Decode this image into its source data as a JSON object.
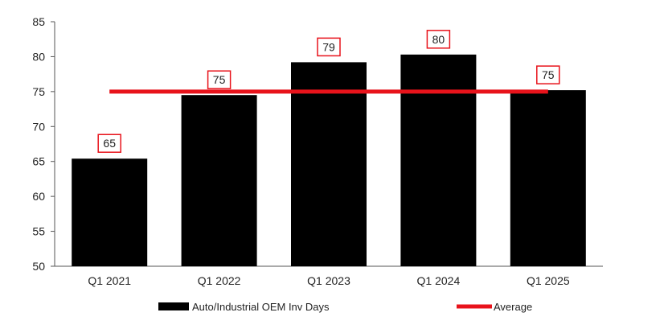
{
  "chart_data": {
    "type": "bar",
    "categories": [
      "Q1 2021",
      "Q1 2022",
      "Q1 2023",
      "Q1 2024",
      "Q1 2025"
    ],
    "series": [
      {
        "name": "Auto/Industrial OEM Inv Days",
        "values": [
          65.4,
          74.5,
          79.2,
          80.3,
          75.2
        ],
        "labels": [
          "65",
          "75",
          "79",
          "80",
          "75"
        ],
        "color": "#000000"
      },
      {
        "name": "Average",
        "type": "line",
        "value": 75,
        "color": "#e8131b"
      }
    ],
    "ylim": [
      50,
      85
    ],
    "yticks": [
      50,
      55,
      60,
      65,
      70,
      75,
      80,
      85
    ],
    "title": "",
    "xlabel": "",
    "ylabel": "",
    "grid": false,
    "legend": "bottom",
    "label_box_color": "#e8131b"
  }
}
